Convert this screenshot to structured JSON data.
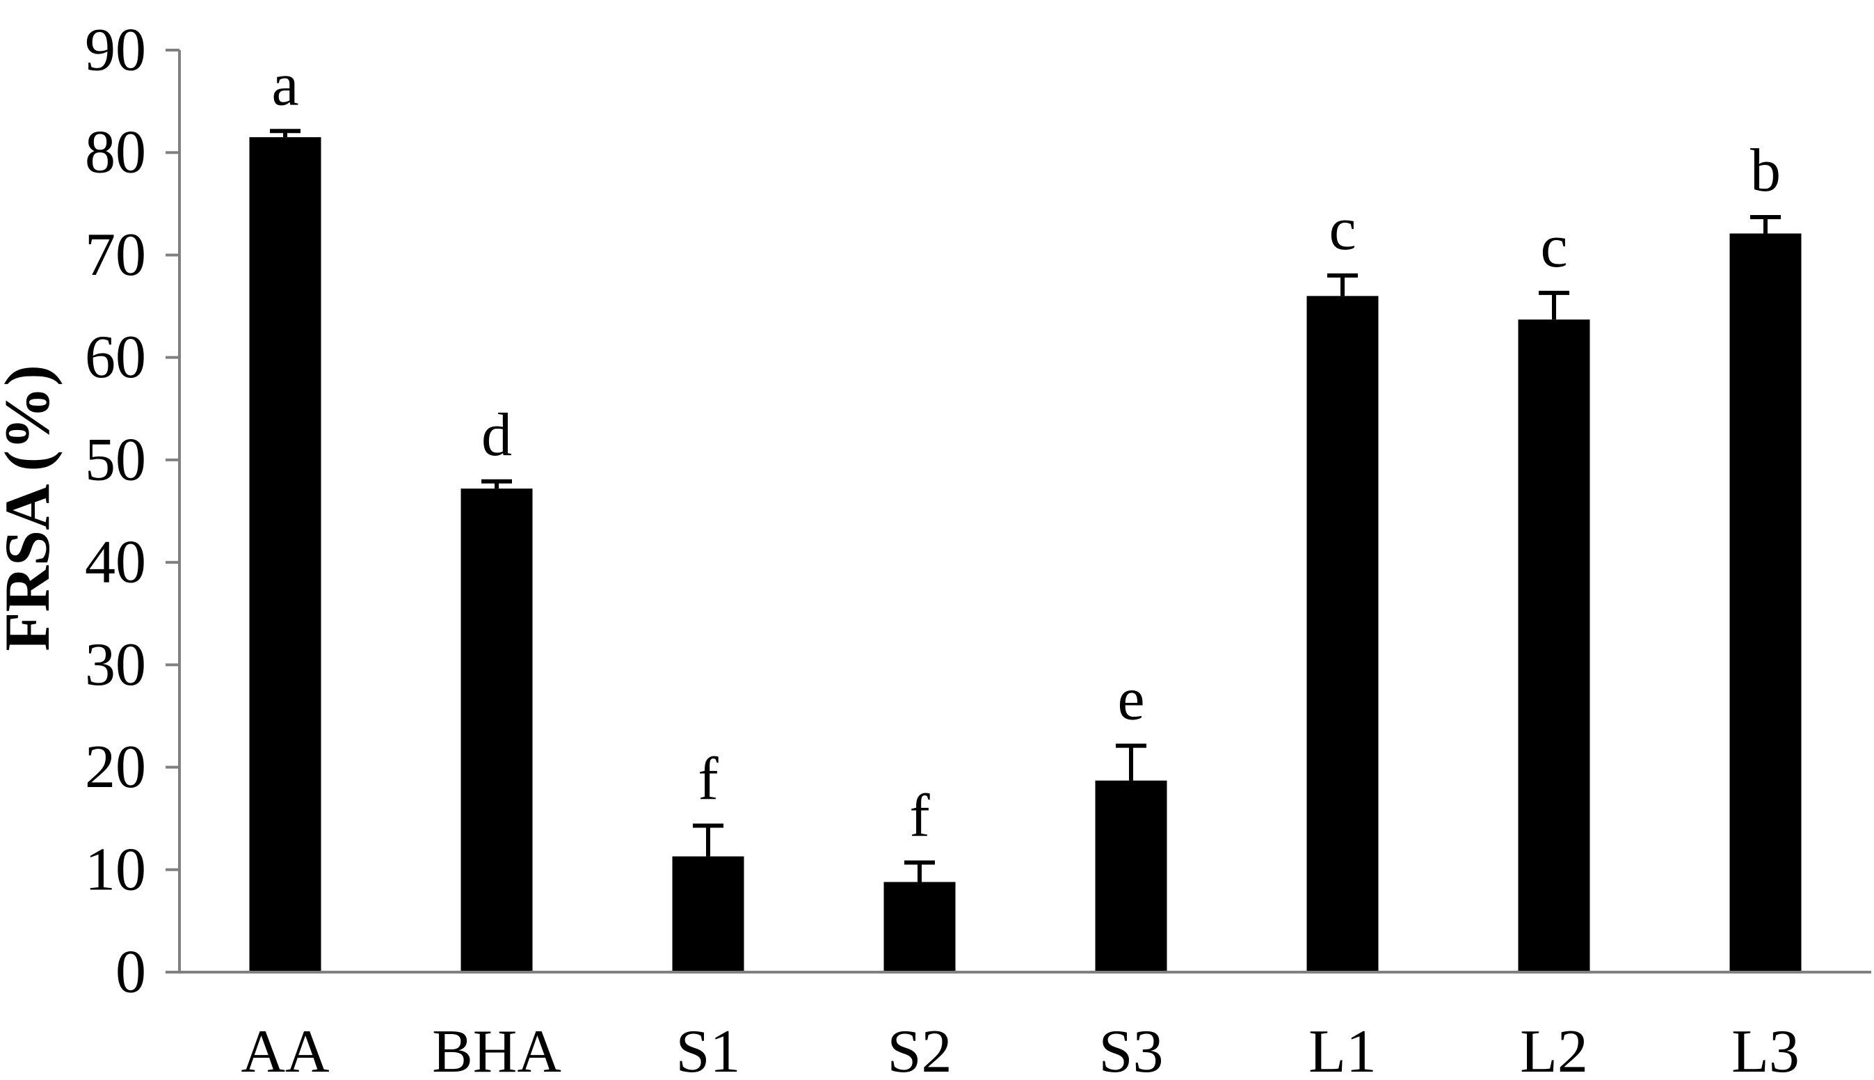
{
  "chart_data": {
    "type": "bar",
    "title": "",
    "xlabel": "",
    "ylabel": "FRSA (%)",
    "ylim": [
      0,
      90
    ],
    "yticks": [
      0,
      10,
      20,
      30,
      40,
      50,
      60,
      70,
      80,
      90
    ],
    "grid": false,
    "legend": "none",
    "bar_color": "#000000",
    "categories": [
      "AA",
      "BHA",
      "S1",
      "S2",
      "S3",
      "L1",
      "L2",
      "L3"
    ],
    "values": [
      81.5,
      47.2,
      11.3,
      8.8,
      18.7,
      66.0,
      63.7,
      72.1
    ],
    "error": [
      0.6,
      0.7,
      3.0,
      1.9,
      3.4,
      2.0,
      2.6,
      1.6
    ],
    "significance_letters": [
      "a",
      "d",
      "f",
      "f",
      "e",
      "c",
      "c",
      "b"
    ]
  }
}
